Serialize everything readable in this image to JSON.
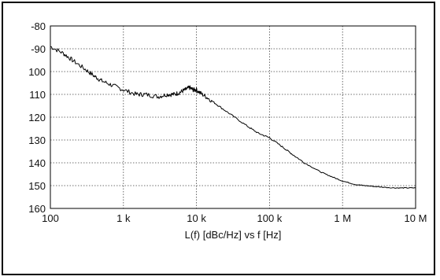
{
  "chart_data": {
    "type": "line",
    "title": "",
    "xlabel": "L(f)  [dBc/Hz] vs f [Hz]",
    "ylabel": "",
    "x_scale": "log",
    "xlim": [
      100,
      10000000
    ],
    "ylim": [
      -160,
      -80
    ],
    "y_inverted_top_is": -80,
    "grid": true,
    "x_ticks": [
      {
        "value": 100,
        "label": "100"
      },
      {
        "value": 1000,
        "label": "1 k"
      },
      {
        "value": 10000,
        "label": "10 k"
      },
      {
        "value": 100000,
        "label": "100 k"
      },
      {
        "value": 1000000,
        "label": "1 M"
      },
      {
        "value": 10000000,
        "label": "10 M"
      }
    ],
    "y_ticks": [
      {
        "value": -80,
        "label": "-80"
      },
      {
        "value": -90,
        "label": "-90"
      },
      {
        "value": -100,
        "label": "100"
      },
      {
        "value": -110,
        "label": "110"
      },
      {
        "value": -120,
        "label": "120"
      },
      {
        "value": -130,
        "label": "130"
      },
      {
        "value": -140,
        "label": "140"
      },
      {
        "value": -150,
        "label": "150"
      },
      {
        "value": -160,
        "label": "160"
      }
    ],
    "series": [
      {
        "color": "#000000",
        "x": [
          100,
          150,
          200,
          300,
          400,
          500,
          700,
          1000,
          1500,
          2000,
          3000,
          4000,
          5000,
          6000,
          7000,
          8000,
          9000,
          10000,
          12000,
          15000,
          20000,
          30000,
          50000,
          70000,
          100000,
          150000,
          200000,
          300000,
          500000,
          700000,
          1000000,
          1500000,
          2000000,
          3000000,
          5000000,
          7000000,
          10000000
        ],
        "y": [
          -89,
          -92,
          -95,
          -99,
          -102,
          -104,
          -106,
          -108,
          -110,
          -110,
          -111,
          -110,
          -110,
          -109,
          -108,
          -107,
          -108,
          -108,
          -110,
          -112,
          -115,
          -119,
          -124,
          -127,
          -129,
          -133,
          -136,
          -140,
          -144,
          -146,
          -148,
          -149.5,
          -150,
          -150.5,
          -151,
          -151,
          -151
        ]
      }
    ]
  }
}
